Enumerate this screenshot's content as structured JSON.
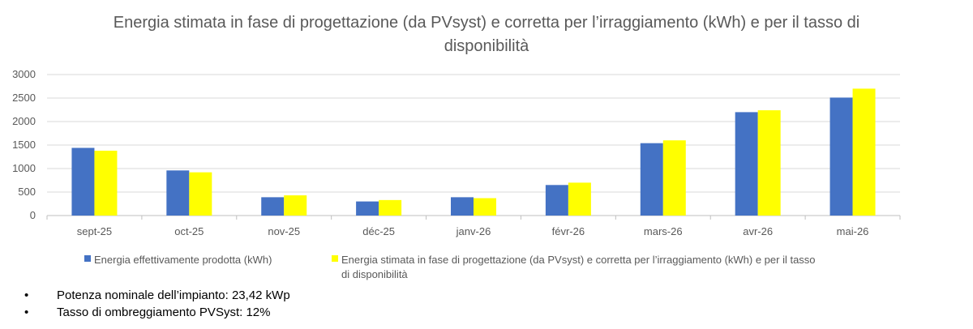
{
  "chart_data": {
    "type": "bar",
    "title": "Energia stimata in fase di progettazione (da PVsyst) e corretta per l’irraggiamento (kWh) e per il tasso di disponibilità",
    "categories": [
      "sept-25",
      "oct-25",
      "nov-25",
      "déc-25",
      "janv-26",
      "févr-26",
      "mars-26",
      "avr-26",
      "mai-26"
    ],
    "series": [
      {
        "name": "Energia effettivamente prodotta (kWh)",
        "color": "#4472C4",
        "values": [
          1440,
          960,
          390,
          300,
          390,
          650,
          1540,
          2200,
          2510
        ]
      },
      {
        "name": "Energia stimata in fase di progettazione (da PVsyst) e corretta per l’irraggiamento (kWh) e per il tasso di disponibilità",
        "color": "#FFFF00",
        "values": [
          1380,
          920,
          430,
          330,
          370,
          700,
          1600,
          2240,
          2700
        ]
      }
    ],
    "ylim": [
      0,
      3000
    ],
    "yticks": [
      0,
      500,
      1000,
      1500,
      2000,
      2500,
      3000
    ],
    "grid": true,
    "legend_position": "bottom",
    "xlabel": "",
    "ylabel": ""
  },
  "notes": [
    "Potenza nominale dell’impianto: 23,42 kWp",
    "Tasso di ombreggiamento PVSyst: 12%"
  ],
  "bullet_symbol": "•"
}
